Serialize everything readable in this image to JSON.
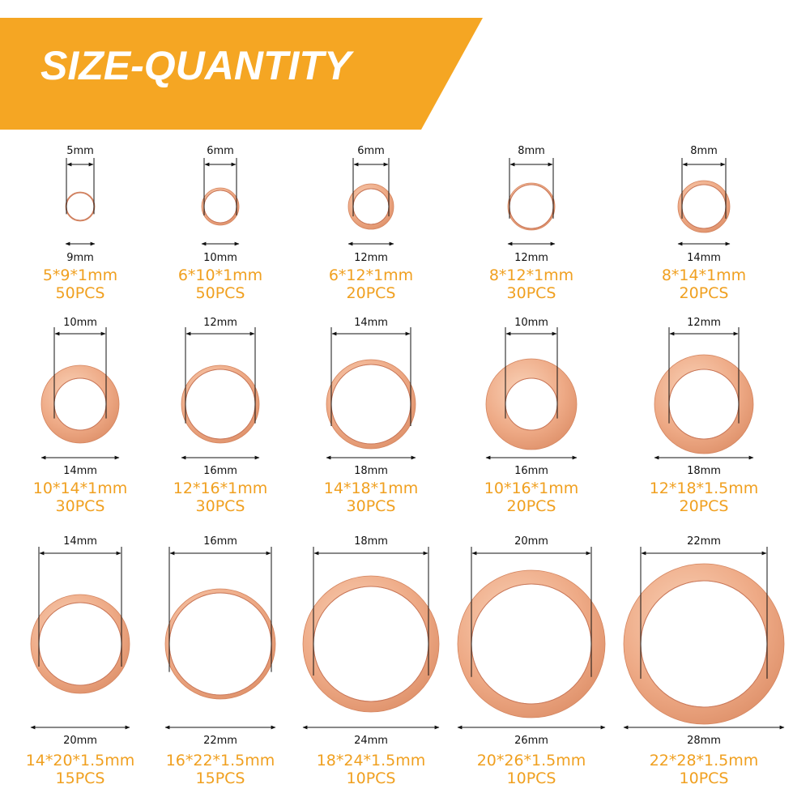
{
  "header": {
    "title": "SIZE-QUANTITY",
    "accent_color": "#f5a623"
  },
  "colors": {
    "ring_light": "#f6c7a8",
    "ring_mid": "#e9a27d",
    "ring_dark": "#d98a63",
    "label_orange": "#f0a020",
    "dimension_line": "#111111"
  },
  "washers": [
    {
      "inner": "5mm",
      "outer": "9mm",
      "spec": "5*9*1mm",
      "qty": "50PCS"
    },
    {
      "inner": "6mm",
      "outer": "10mm",
      "spec": "6*10*1mm",
      "qty": "50PCS"
    },
    {
      "inner": "6mm",
      "outer": "12mm",
      "spec": "6*12*1mm",
      "qty": "20PCS"
    },
    {
      "inner": "8mm",
      "outer": "12mm",
      "spec": "8*12*1mm",
      "qty": "30PCS"
    },
    {
      "inner": "8mm",
      "outer": "14mm",
      "spec": "8*14*1mm",
      "qty": "20PCS"
    },
    {
      "inner": "10mm",
      "outer": "14mm",
      "spec": "10*14*1mm",
      "qty": "30PCS"
    },
    {
      "inner": "12mm",
      "outer": "16mm",
      "spec": "12*16*1mm",
      "qty": "30PCS"
    },
    {
      "inner": "14mm",
      "outer": "18mm",
      "spec": "14*18*1mm",
      "qty": "30PCS"
    },
    {
      "inner": "10mm",
      "outer": "16mm",
      "spec": "10*16*1mm",
      "qty": "20PCS"
    },
    {
      "inner": "12mm",
      "outer": "18mm",
      "spec": "12*18*1.5mm",
      "qty": "20PCS"
    },
    {
      "inner": "14mm",
      "outer": "20mm",
      "spec": "14*20*1.5mm",
      "qty": "15PCS"
    },
    {
      "inner": "16mm",
      "outer": "22mm",
      "spec": "16*22*1.5mm",
      "qty": "15PCS"
    },
    {
      "inner": "18mm",
      "outer": "24mm",
      "spec": "18*24*1.5mm",
      "qty": "10PCS"
    },
    {
      "inner": "20mm",
      "outer": "26mm",
      "spec": "20*26*1.5mm",
      "qty": "10PCS"
    },
    {
      "inner": "22mm",
      "outer": "28mm",
      "spec": "22*28*1.5mm",
      "qty": "10PCS"
    }
  ]
}
